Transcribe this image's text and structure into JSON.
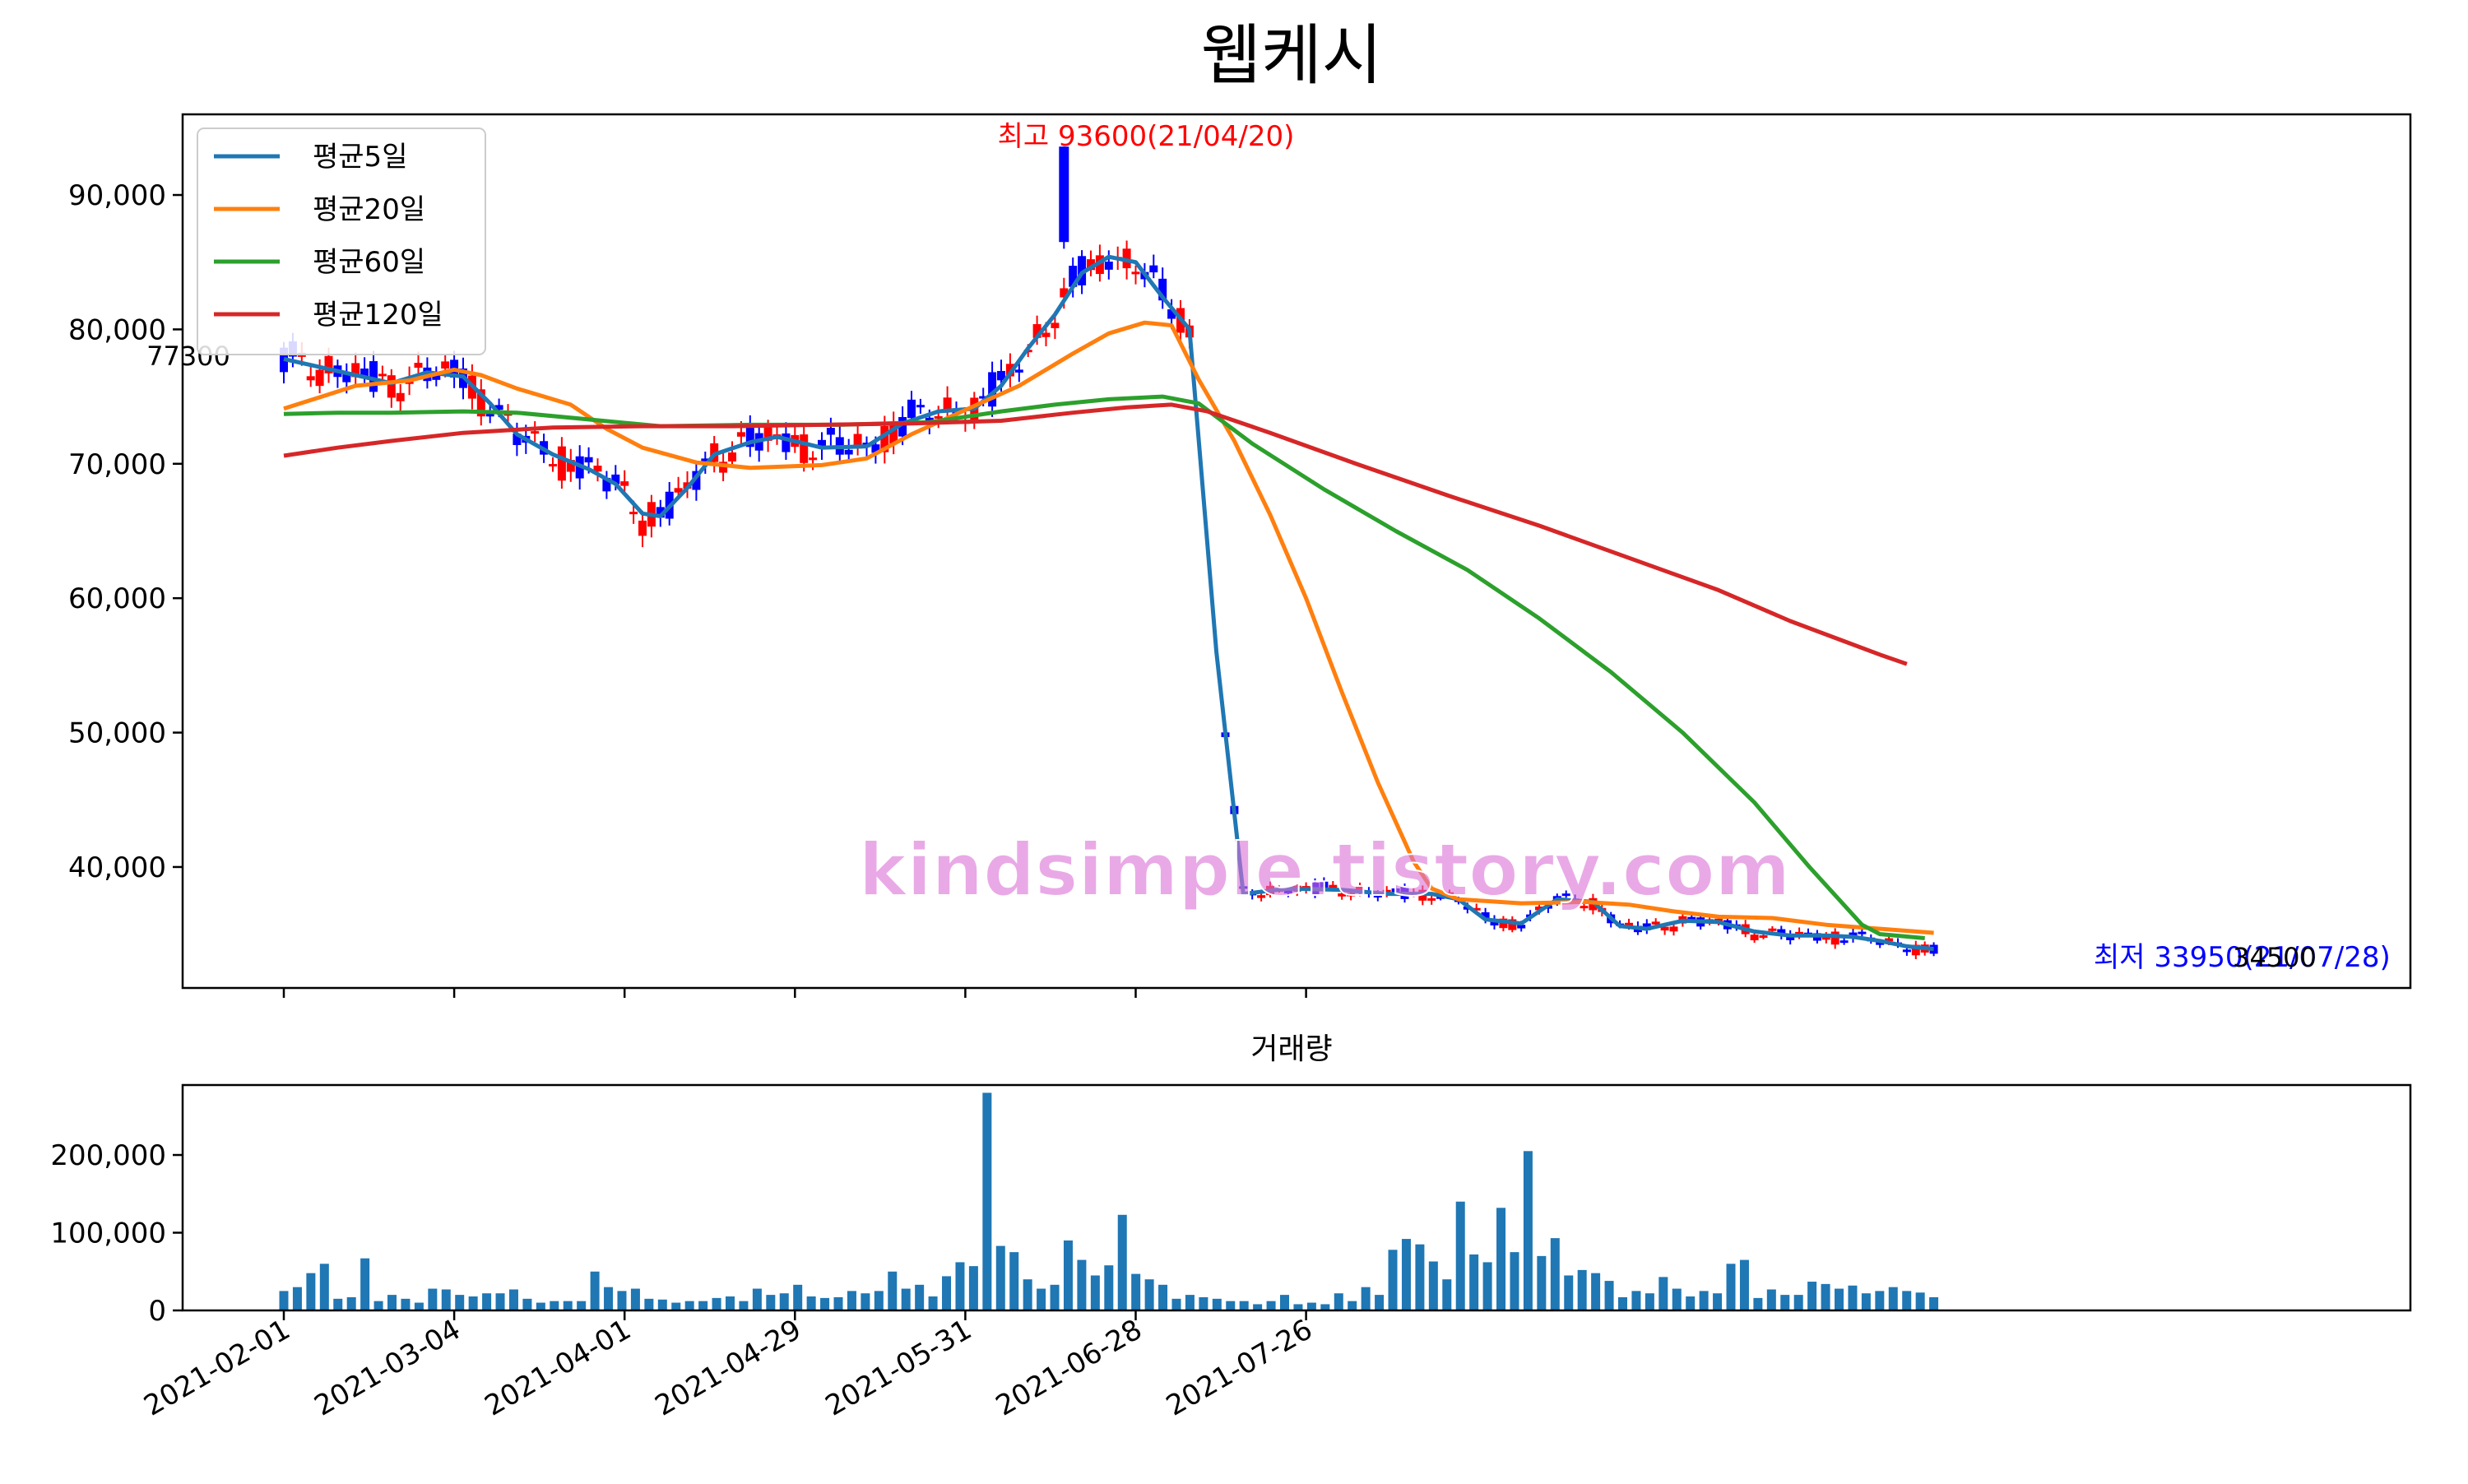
{
  "title": "웹케시",
  "colors": {
    "up": "#ff0000",
    "down": "#0000ff",
    "ma5": "#1f77b4",
    "ma20": "#ff7f0e",
    "ma60": "#2ca02c",
    "ma120": "#d62728",
    "volume": "#1f77b4",
    "watermark": "#da70d6"
  },
  "annotations": {
    "high": "최고 93600(21/04/20)",
    "low": "최저 33950(21/07/28)",
    "start_price": "77300",
    "last_price": "34500"
  },
  "watermark": "kindsimple.tistory.com",
  "volume_title": "거래량",
  "chart_data": [
    {
      "type": "candlestick",
      "title": "웹케시",
      "ylim": [
        31000,
        96000
      ],
      "y_ticks": [
        40000,
        50000,
        60000,
        70000,
        80000,
        90000
      ],
      "y_tick_labels": [
        "40,000",
        "50,000",
        "60,000",
        "70,000",
        "80,000",
        "90,000"
      ],
      "x_ticks": [
        "2021-02-01",
        "2021-03-04",
        "2021-04-01",
        "2021-04-29",
        "2021-05-31",
        "2021-06-28",
        "2021-07-26"
      ],
      "legend": {
        "position": "top-left",
        "entries": [
          "평균5일",
          "평균20일",
          "평균60일",
          "평균120일"
        ]
      },
      "series": [
        {
          "name": "평균5일",
          "points": [
            [
              0,
              77800
            ],
            [
              4,
              77200
            ],
            [
              8,
              76600
            ],
            [
              12,
              76000
            ],
            [
              16,
              76800
            ],
            [
              20,
              76500
            ],
            [
              23,
              74500
            ],
            [
              26,
              72200
            ],
            [
              30,
              70700
            ],
            [
              34,
              69600
            ],
            [
              37,
              68500
            ],
            [
              40,
              66300
            ],
            [
              42,
              66100
            ],
            [
              45,
              68200
            ],
            [
              48,
              70700
            ],
            [
              52,
              71600
            ],
            [
              55,
              72000
            ],
            [
              60,
              71200
            ],
            [
              65,
              71300
            ],
            [
              69,
              73000
            ],
            [
              73,
              73900
            ],
            [
              77,
              74100
            ],
            [
              80,
              75800
            ],
            [
              83,
              78600
            ],
            [
              86,
              81100
            ],
            [
              89,
              84200
            ],
            [
              92,
              85400
            ],
            [
              95,
              85000
            ],
            [
              98,
              82400
            ],
            [
              101,
              80000
            ],
            [
              104,
              56000
            ],
            [
              107,
              38000
            ],
            [
              112,
              38400
            ],
            [
              118,
              38300
            ],
            [
              123,
              38000
            ],
            [
              128,
              38000
            ],
            [
              131,
              37600
            ],
            [
              134,
              36100
            ],
            [
              138,
              35800
            ],
            [
              142,
              37600
            ],
            [
              146,
              37400
            ],
            [
              149,
              35600
            ],
            [
              152,
              35400
            ],
            [
              156,
              36000
            ],
            [
              160,
              35900
            ],
            [
              164,
              35200
            ],
            [
              168,
              34900
            ],
            [
              172,
              34900
            ],
            [
              175,
              34800
            ],
            [
              178,
              34500
            ],
            [
              181,
              34100
            ],
            [
              184,
              33900
            ]
          ]
        },
        {
          "name": "평균20일",
          "points": [
            [
              0,
              74100
            ],
            [
              8,
              75800
            ],
            [
              14,
              76200
            ],
            [
              19,
              77000
            ],
            [
              22,
              76600
            ],
            [
              26,
              75600
            ],
            [
              32,
              74400
            ],
            [
              36,
              72600
            ],
            [
              40,
              71200
            ],
            [
              46,
              70100
            ],
            [
              52,
              69700
            ],
            [
              60,
              69900
            ],
            [
              65,
              70400
            ],
            [
              70,
              72200
            ],
            [
              76,
              74000
            ],
            [
              82,
              75800
            ],
            [
              88,
              78200
            ],
            [
              92,
              79700
            ],
            [
              96,
              80500
            ],
            [
              99,
              80300
            ],
            [
              102,
              76300
            ],
            [
              106,
              71700
            ],
            [
              110,
              66200
            ],
            [
              114,
              60000
            ],
            [
              118,
              53000
            ],
            [
              122,
              46300
            ],
            [
              126,
              40400
            ],
            [
              128,
              38400
            ],
            [
              131,
              37600
            ],
            [
              138,
              37300
            ],
            [
              145,
              37400
            ],
            [
              150,
              37200
            ],
            [
              155,
              36700
            ],
            [
              160,
              36300
            ],
            [
              166,
              36200
            ],
            [
              172,
              35700
            ],
            [
              178,
              35400
            ],
            [
              184,
              35100
            ]
          ]
        },
        {
          "name": "평균60일",
          "points": [
            [
              0,
              73700
            ],
            [
              6,
              73800
            ],
            [
              12,
              73800
            ],
            [
              20,
              73900
            ],
            [
              26,
              73800
            ],
            [
              34,
              73300
            ],
            [
              42,
              72800
            ],
            [
              52,
              72900
            ],
            [
              62,
              72900
            ],
            [
              72,
              73100
            ],
            [
              80,
              73900
            ],
            [
              86,
              74400
            ],
            [
              92,
              74800
            ],
            [
              98,
              75000
            ],
            [
              102,
              74500
            ],
            [
              108,
              71500
            ],
            [
              116,
              68100
            ],
            [
              124,
              65000
            ],
            [
              132,
              62100
            ],
            [
              140,
              58500
            ],
            [
              148,
              54500
            ],
            [
              156,
              50000
            ],
            [
              164,
              44800
            ],
            [
              170,
              40100
            ],
            [
              176,
              35700
            ],
            [
              178,
              35000
            ],
            [
              183,
              34700
            ]
          ]
        },
        {
          "name": "평균120일",
          "points": [
            [
              0,
              70600
            ],
            [
              6,
              71200
            ],
            [
              12,
              71700
            ],
            [
              20,
              72300
            ],
            [
              30,
              72700
            ],
            [
              40,
              72800
            ],
            [
              50,
              72800
            ],
            [
              60,
              72900
            ],
            [
              70,
              73000
            ],
            [
              80,
              73200
            ],
            [
              88,
              73800
            ],
            [
              94,
              74200
            ],
            [
              99,
              74400
            ],
            [
              103,
              73900
            ],
            [
              110,
              72300
            ],
            [
              120,
              69900
            ],
            [
              130,
              67600
            ],
            [
              140,
              65400
            ],
            [
              150,
              63000
            ],
            [
              160,
              60600
            ],
            [
              168,
              58300
            ],
            [
              174,
              56800
            ],
            [
              178,
              55800
            ],
            [
              181,
              55100
            ]
          ]
        }
      ]
    },
    {
      "type": "bar",
      "title": "거래량",
      "ylim": [
        0,
        290000
      ],
      "y_ticks": [
        0,
        100000,
        200000
      ],
      "y_tick_labels": [
        "0",
        "100,000",
        "200,000"
      ],
      "x_ticks": [
        "2021-02-01",
        "2021-03-04",
        "2021-04-01",
        "2021-04-29",
        "2021-05-31",
        "2021-06-28",
        "2021-07-26"
      ],
      "values": [
        25000,
        30000,
        48000,
        60000,
        15000,
        17000,
        67000,
        12000,
        20000,
        15000,
        10000,
        28000,
        27000,
        20000,
        18000,
        22000,
        22000,
        27000,
        15000,
        10000,
        12000,
        12000,
        12000,
        50000,
        30000,
        25000,
        28000,
        15000,
        14000,
        10000,
        12000,
        12000,
        16000,
        18000,
        12000,
        28000,
        20000,
        22000,
        33000,
        18000,
        16000,
        17000,
        25000,
        22000,
        25000,
        50000,
        28000,
        33000,
        18000,
        44000,
        62000,
        57000,
        280000,
        83000,
        75000,
        40000,
        28000,
        33000,
        90000,
        65000,
        45000,
        58000,
        123000,
        47000,
        40000,
        33000,
        15000,
        20000,
        17000,
        15000,
        12000,
        12000,
        8000,
        12000,
        20000,
        8000,
        10000,
        8000,
        22000,
        12000,
        30000,
        20000,
        78000,
        92000,
        85000,
        63000,
        40000,
        140000,
        72000,
        62000,
        132000,
        75000,
        205000,
        70000,
        93000,
        45000,
        52000,
        48000,
        38000,
        17000,
        25000,
        22000,
        43000,
        28000,
        18000,
        25000,
        22000,
        60000,
        65000,
        16000,
        27000,
        20000,
        20000,
        37000,
        34000,
        28000,
        32000,
        22000,
        25000,
        30000,
        25000,
        23000,
        17000
      ]
    }
  ]
}
